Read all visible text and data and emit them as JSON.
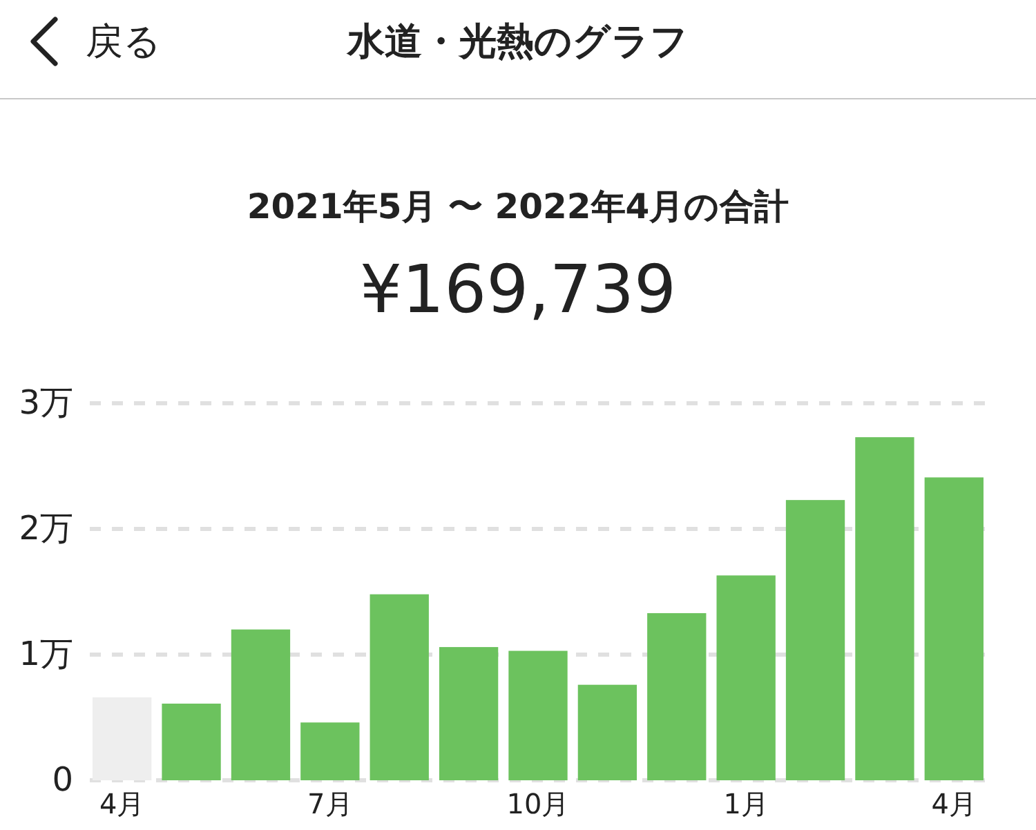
{
  "chart_data": {
    "type": "bar",
    "title": "水道・光熱のグラフ",
    "subtitle": "2021年5月 〜 2022年4月の合計",
    "annotations": [
      "¥169,739",
      "戻る"
    ],
    "categories": [
      "4月",
      null,
      null,
      "7月",
      null,
      null,
      "10月",
      null,
      null,
      "1月",
      null,
      null,
      "4月"
    ],
    "values": [
      0.66,
      0.61,
      1.2,
      0.46,
      1.48,
      1.06,
      1.03,
      0.76,
      1.33,
      1.63,
      2.23,
      2.73,
      2.41
    ],
    "colors": [
      "#eeeeee",
      "#6cc25e",
      "#6cc25e",
      "#6cc25e",
      "#6cc25e",
      "#6cc25e",
      "#6cc25e",
      "#6cc25e",
      "#6cc25e",
      "#6cc25e",
      "#6cc25e",
      "#6cc25e",
      "#6cc25e"
    ],
    "ylim": [
      0,
      3
    ],
    "yticks": [
      0,
      {
        "value": 1,
        "label": "1万"
      },
      {
        "value": 2,
        "label": "2万"
      },
      {
        "value": 3,
        "label": "3万"
      }
    ],
    "grid": "y",
    "line_style": "dashed"
  }
}
